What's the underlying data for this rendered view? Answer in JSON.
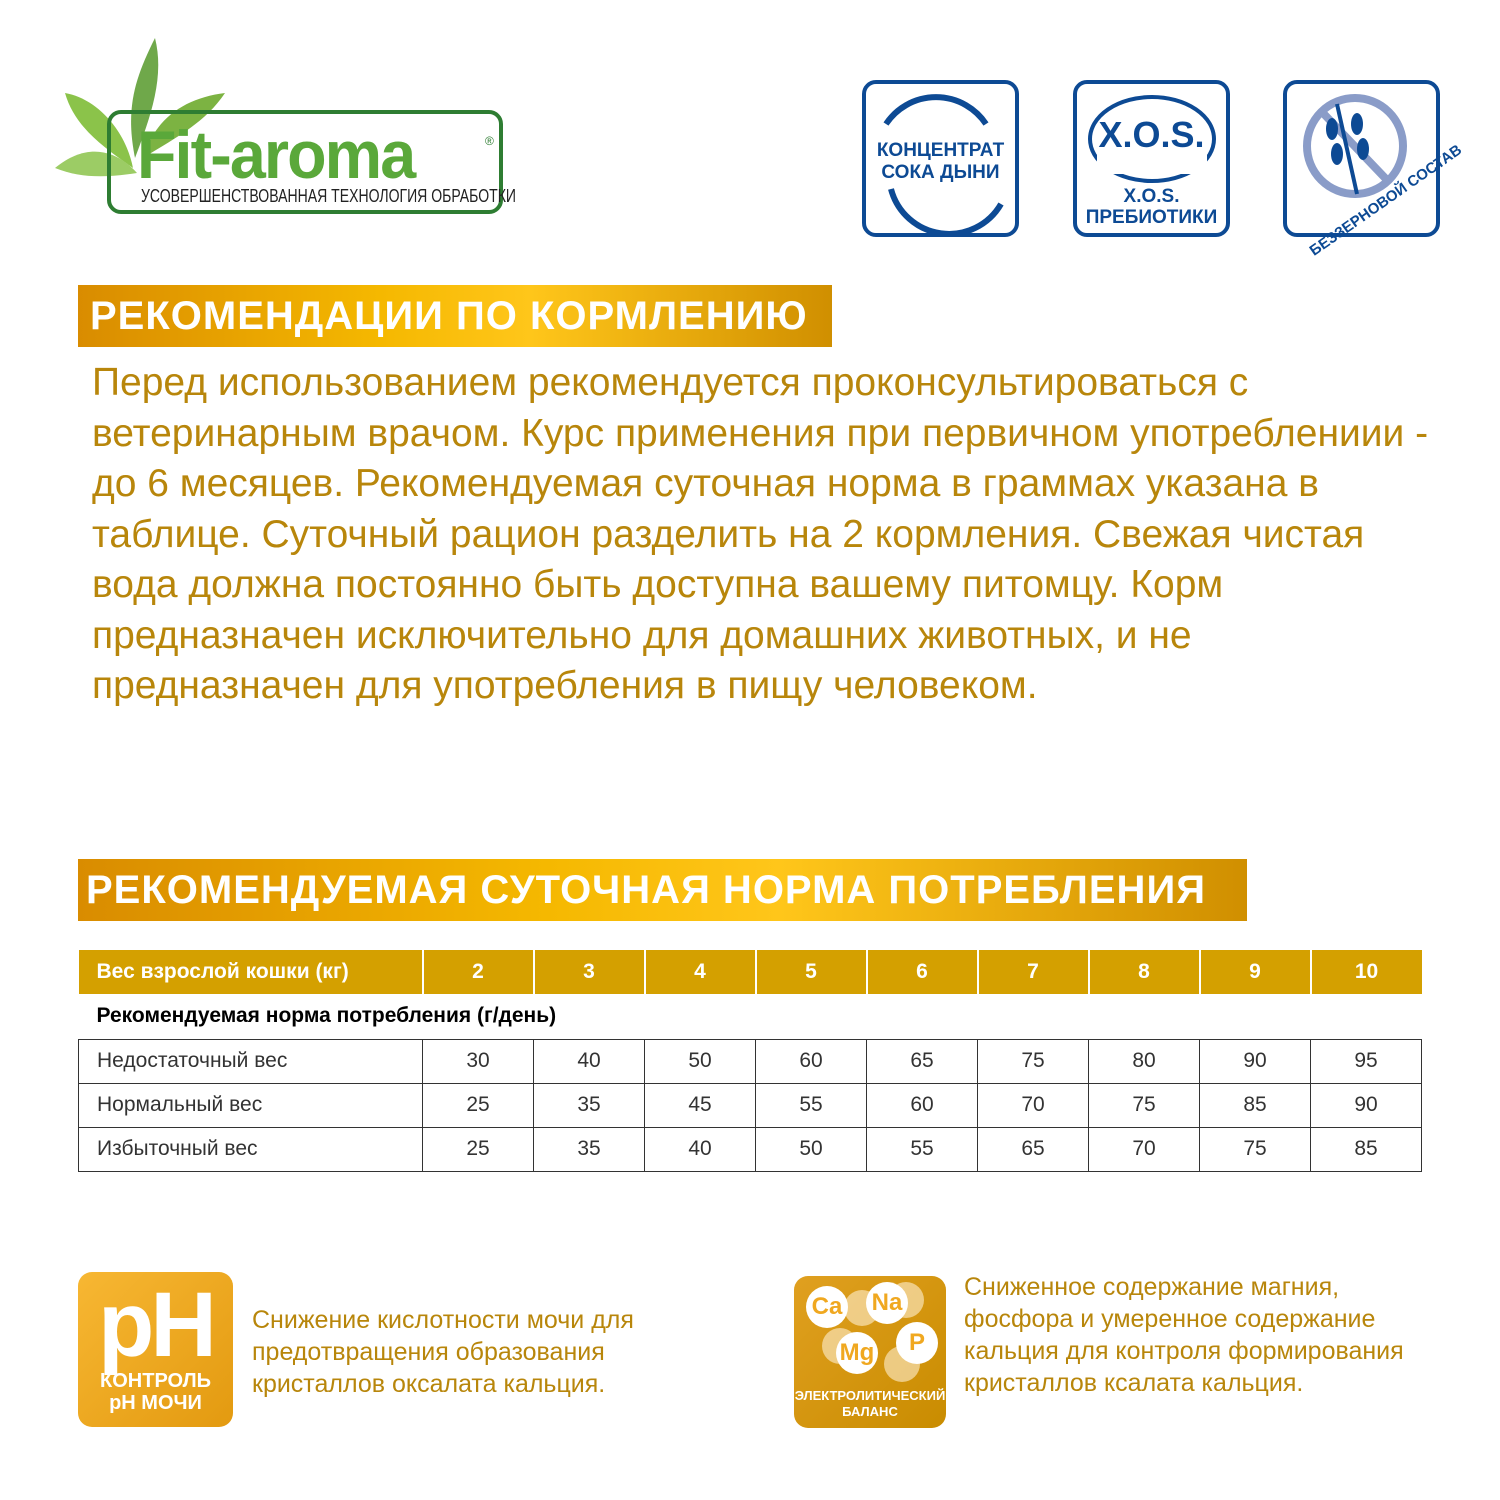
{
  "logo": {
    "name": "Fit-aroma",
    "registered": "®",
    "tagline": "УСОВЕРШЕНСТВОВАННАЯ ТЕХНОЛОГИЯ ОБРАБОТКИ"
  },
  "badges": [
    {
      "icon": "melon-juice-icon",
      "lines": [
        "КОНЦЕНТРАТ",
        "СОКА ДЫНИ"
      ]
    },
    {
      "icon": "xos-icon",
      "title": "X.O.S.",
      "lines": [
        "X.O.S.",
        "ПРЕБИОТИКИ"
      ]
    },
    {
      "icon": "grain-free-icon",
      "label": "БЕЗЗЕРНОВОЙ СОСТАВ"
    }
  ],
  "feeding": {
    "title": "РЕКОМЕНДАЦИИ ПО КОРМЛЕНИЮ",
    "text": "Перед использованием рекомендуется проконсультироваться с ветеринарным врачом. Курс применения при первичном употреблениии - до 6 месяцев. Рекомендуемая суточная норма в граммах указана в таблице. Суточный рацион разделить на 2 кормления. Свежая чистая вода должна постоянно быть доступна вашему питомцу. Корм предназначен исключительно для домашних животных, и не предназначен для употребления в пищу человеком."
  },
  "norm": {
    "title": "РЕКОМЕНДУЕМАЯ СУТОЧНАЯ НОРМА ПОТРЕБЛЕНИЯ",
    "header": [
      "Вес взрослой кошки (кг)",
      "2",
      "3",
      "4",
      "5",
      "6",
      "7",
      "8",
      "9",
      "10"
    ],
    "subheader": "Рекомендуемая норма потребления (г/день)",
    "rows": [
      [
        "Недостаточный вес",
        "30",
        "40",
        "50",
        "60",
        "65",
        "75",
        "80",
        "90",
        "95"
      ],
      [
        "Нормальный вес",
        "25",
        "35",
        "45",
        "55",
        "60",
        "70",
        "75",
        "85",
        "90"
      ],
      [
        "Избыточный вес",
        "25",
        "35",
        "40",
        "50",
        "55",
        "65",
        "70",
        "75",
        "85"
      ]
    ]
  },
  "features": [
    {
      "icon": "ph-control-icon",
      "big": "pH",
      "label1": "КОНТРОЛЬ",
      "label2": "pH МОЧИ",
      "text": "Снижение кислотности мочи для предотвращения образования кристаллов оксалата кальция."
    },
    {
      "icon": "electrolyte-balance-icon",
      "elements": [
        "Ca",
        "Na",
        "Mg",
        "P"
      ],
      "label1": "ЭЛЕКТРОЛИТИЧЕСКИЙ",
      "label2": "БАЛАНС",
      "text": "Сниженное содержание магния, фосфора и умеренное содержание кальция для контроля формирования кристаллов ксалата кальция."
    }
  ],
  "colors": {
    "gold": "#b8860b",
    "table_header": "#d4a000",
    "badge_blue": "#0d4a94",
    "logo_green": "#5aa83a"
  }
}
